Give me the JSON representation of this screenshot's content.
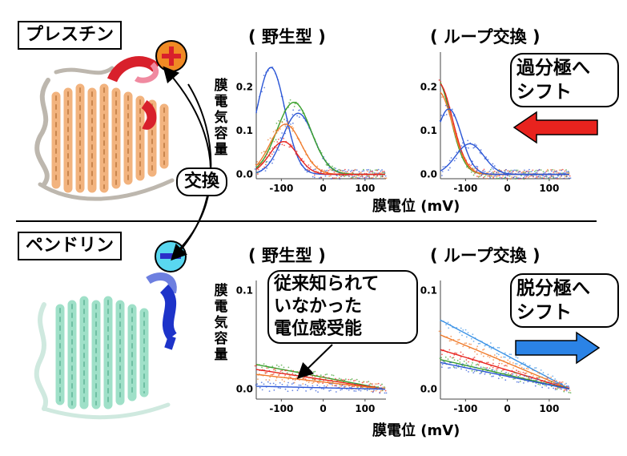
{
  "prestin": {
    "name": "プレスチン",
    "charge": "+"
  },
  "pendrin": {
    "name": "ペンドリン",
    "charge": "−"
  },
  "exchange_label": "交換",
  "panels": {
    "top_wild": "( 野生型 )",
    "top_loop": "( ループ交換 )",
    "bottom_wild": "( 野生型 )",
    "bottom_loop": "( ループ交換 )"
  },
  "axis": {
    "ylabel": "膜電気容量",
    "xlabel": "膜電位 (mV)"
  },
  "annotations": {
    "hyper_shift": [
      "過分極へ",
      "シフト"
    ],
    "depol_shift": [
      "脱分極へ",
      "シフト"
    ],
    "unknown_sensing": [
      "従来知られて",
      "いなかった",
      "電位感受能"
    ]
  },
  "colors": {
    "red": "#e8231e",
    "orange": "#f07b2b",
    "green": "#3aa02c",
    "blue": "#2b56d6",
    "lightblue": "#3c93e6"
  },
  "chart_data": [
    {
      "type": "line",
      "title": "( 野生型 )",
      "xlabel": "膜電位 (mV)",
      "ylabel": "膜電気容量",
      "xlim": [
        -160,
        150
      ],
      "ylim": [
        -0.01,
        0.28
      ],
      "xticks": [
        "-100",
        "0",
        "100"
      ],
      "yticks": [
        "0.0",
        "0.1",
        "0.2"
      ],
      "series": [
        {
          "color": "blue",
          "peak_x": -125,
          "peak": 0.245,
          "width": 45,
          "base": 0.0
        },
        {
          "color": "blue",
          "peak_x": -60,
          "peak": 0.14,
          "width": 50,
          "base": 0.0
        },
        {
          "color": "green",
          "peak_x": -70,
          "peak": 0.165,
          "width": 55,
          "base": 0.0
        },
        {
          "color": "orange",
          "peak_x": -90,
          "peak": 0.115,
          "width": 50,
          "base": 0.0
        },
        {
          "color": "red",
          "peak_x": -95,
          "peak": 0.075,
          "width": 45,
          "base": 0.0
        }
      ]
    },
    {
      "type": "line",
      "title": "( ループ交換 )",
      "xlabel": "膜電位 (mV)",
      "ylabel": "膜電気容量",
      "xlim": [
        -160,
        150
      ],
      "ylim": [
        -0.01,
        0.28
      ],
      "xticks": [
        "-100",
        "0",
        "100"
      ],
      "yticks": [
        "0.0",
        "0.1",
        "0.2"
      ],
      "series": [
        {
          "color": "green",
          "peak_x": -170,
          "peak": 0.22,
          "width": 45,
          "base": 0.0
        },
        {
          "color": "red",
          "peak_x": -165,
          "peak": 0.21,
          "width": 45,
          "base": 0.0
        },
        {
          "color": "orange",
          "peak_x": -165,
          "peak": 0.19,
          "width": 45,
          "base": 0.0
        },
        {
          "color": "blue",
          "peak_x": -140,
          "peak": 0.15,
          "width": 40,
          "base": 0.0
        },
        {
          "color": "blue",
          "peak_x": -90,
          "peak": 0.07,
          "width": 45,
          "base": 0.0
        }
      ]
    },
    {
      "type": "line",
      "title": "( 野生型 )",
      "xlabel": "膜電位 (mV)",
      "ylabel": "膜電気容量",
      "xlim": [
        -160,
        150
      ],
      "ylim": [
        -0.01,
        0.11
      ],
      "xticks": [
        "-100",
        "0",
        "100"
      ],
      "yticks": [
        "0.0",
        "0.1"
      ],
      "series": [
        {
          "color": "green",
          "start": 0.025,
          "end": 0.0
        },
        {
          "color": "red",
          "start": 0.02,
          "end": 0.0
        },
        {
          "color": "orange",
          "start": 0.015,
          "end": 0.0
        },
        {
          "color": "blue",
          "start": 0.003,
          "end": 0.0
        }
      ]
    },
    {
      "type": "line",
      "title": "( ループ交換 )",
      "xlabel": "膜電位 (mV)",
      "ylabel": "膜電気容量",
      "xlim": [
        -160,
        150
      ],
      "ylim": [
        -0.01,
        0.11
      ],
      "xticks": [
        "-100",
        "0",
        "100"
      ],
      "yticks": [
        "0.0",
        "0.1"
      ],
      "series": [
        {
          "color": "lightblue",
          "start": 0.07,
          "end": 0.0
        },
        {
          "color": "orange",
          "start": 0.055,
          "end": 0.0
        },
        {
          "color": "red",
          "start": 0.04,
          "end": 0.0
        },
        {
          "color": "green",
          "start": 0.03,
          "end": 0.0
        },
        {
          "color": "blue",
          "start": 0.027,
          "end": 0.0
        }
      ]
    }
  ]
}
